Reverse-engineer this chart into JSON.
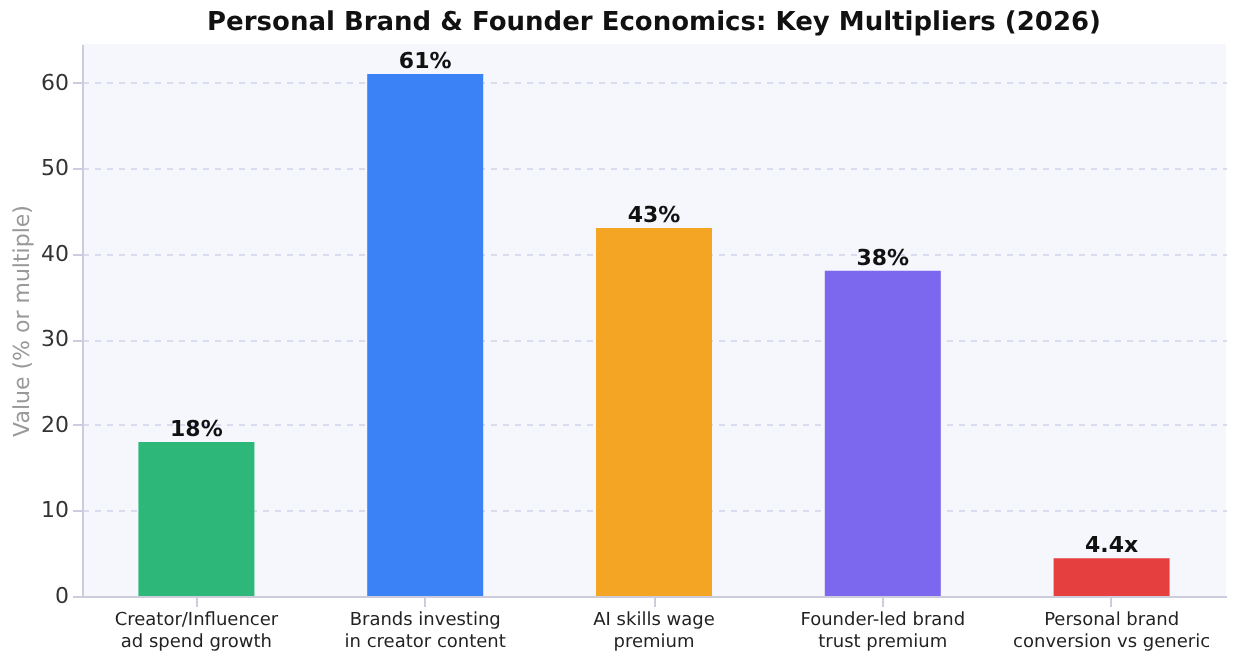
{
  "chart_data": {
    "type": "bar",
    "title": "Personal Brand & Founder Economics: Key Multipliers (2026)",
    "ylabel": "Value (% or multiple)",
    "categories": [
      "Creator/Influencer\nad spend growth",
      "Brands investing\nin creator content",
      "AI skills wage\npremium",
      "Founder-led brand\ntrust premium",
      "Personal brand\nconversion vs generic"
    ],
    "values": [
      18,
      61,
      43,
      38,
      4.4
    ],
    "colors": [
      "#2db87a",
      "#3b82f6",
      "#f5a524",
      "#7b68ee",
      "#e5403f"
    ],
    "value_labels": [
      "18%",
      "61%",
      "43%",
      "38%",
      "4.4x"
    ],
    "ylim": [
      0,
      64.5
    ],
    "yticks": [
      0,
      10,
      20,
      30,
      40,
      50,
      60
    ],
    "grid": "y"
  }
}
